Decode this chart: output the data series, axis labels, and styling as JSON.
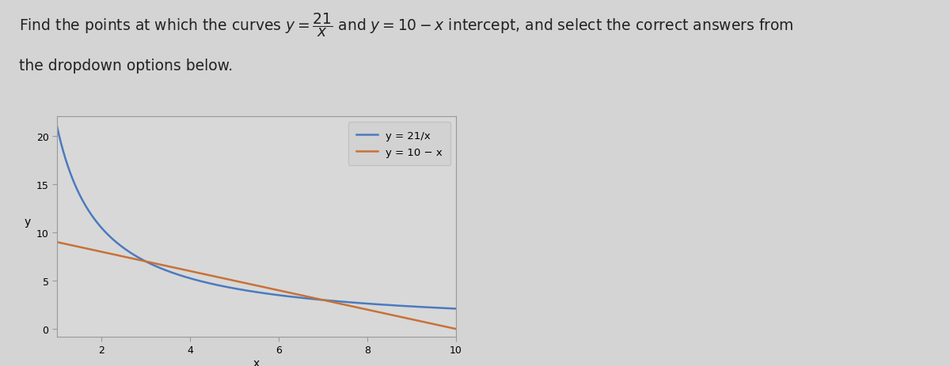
{
  "title_line1": "Find the points at which the curves $y = \\dfrac{21}{x}$ and $y = 10 - x$ intercept, and select the correct answers from",
  "title_line2": "the dropdown options below.",
  "title_fontsize": 13.5,
  "title_color": "#222222",
  "background_color": "#d4d4d4",
  "plot_bg_color": "#d8d8d8",
  "curve1_label": "y = 21/x",
  "curve2_label": "y = 10 − x",
  "curve1_color": "#4b7abf",
  "curve2_color": "#c87137",
  "x_start": 1.0,
  "x_end": 10.0,
  "xlim": [
    1.0,
    10.0
  ],
  "ylim": [
    -0.8,
    22
  ],
  "xticks": [
    2,
    4,
    6,
    8,
    10
  ],
  "yticks": [
    0,
    5,
    10,
    15,
    20
  ],
  "xlabel": "x",
  "ylabel": "y",
  "legend_fontsize": 9.5,
  "axis_fontsize": 10,
  "tick_fontsize": 9
}
